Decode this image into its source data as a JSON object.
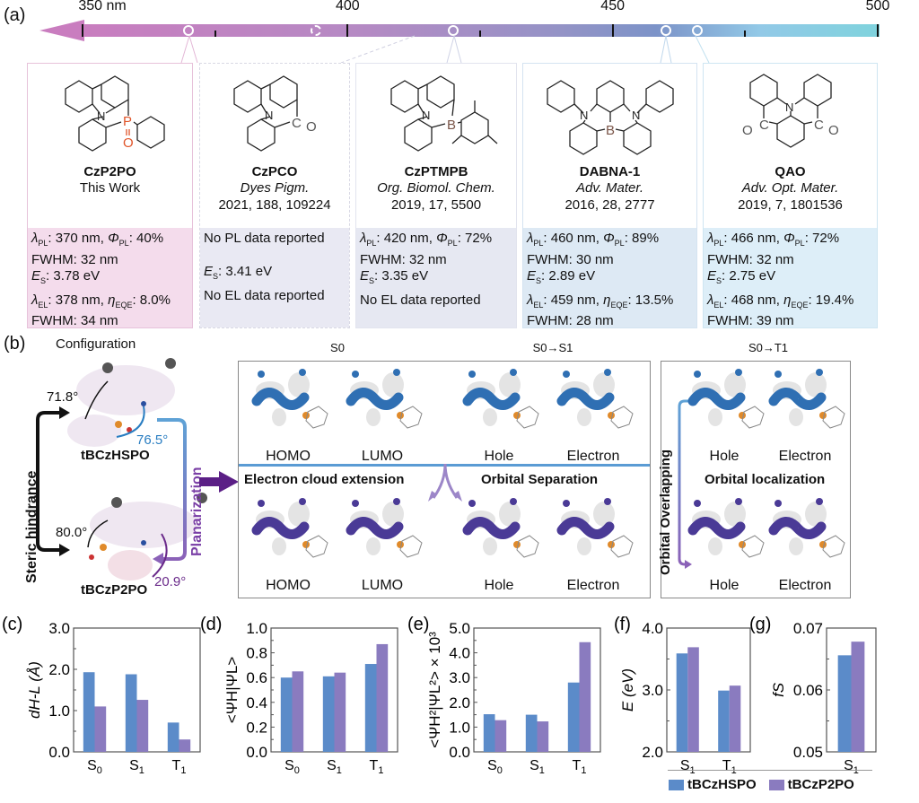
{
  "panel_a": {
    "label": "(a)",
    "scale": {
      "unit_label": "350 nm",
      "major_ticks": [
        "350 nm",
        "400",
        "450",
        "500"
      ],
      "range_nm": [
        350,
        500
      ],
      "markers_nm": [
        {
          "compound": "CzP2PO",
          "nm": 370,
          "style": "solid"
        },
        {
          "compound": "CzPCO",
          "nm": 394,
          "style": "dashed"
        },
        {
          "compound": "CzPTMPB",
          "nm": 420,
          "style": "solid"
        },
        {
          "compound": "DABNA-1",
          "nm": 460,
          "style": "solid"
        },
        {
          "compound": "QAO",
          "nm": 466,
          "style": "solid"
        }
      ]
    },
    "compounds": [
      {
        "name": "CzP2PO",
        "ref_journal": "",
        "ref_line1": "This Work",
        "ref_line2": "",
        "heteroatom": "P",
        "props": [
          "λPL: 370 nm, ΦPL: 40%",
          "FWHM: 32 nm",
          "ES: 3.78 eV",
          "λEL: 378 nm, ηEQE: 8.0%",
          "FWHM: 34 nm"
        ],
        "color": "#f4dcec"
      },
      {
        "name": "CzPCO",
        "ref_journal": "Dyes Pigm.",
        "ref_line1": "",
        "ref_line2": "2021, 188, 109224",
        "heteroatom": "C",
        "props": [
          "No PL data reported",
          "",
          "ES: 3.41 eV",
          "No EL data reported",
          ""
        ],
        "color": "#e9e9f3"
      },
      {
        "name": "CzPTMPB",
        "ref_journal": "Org. Biomol. Chem.",
        "ref_line1": "",
        "ref_line2": "2019, 17, 5500",
        "heteroatom": "B",
        "props": [
          "λPL: 420 nm, ΦPL: 72%",
          "FWHM: 32 nm",
          "ES: 3.35 eV",
          "No EL data reported",
          ""
        ],
        "color": "#e6e8f2"
      },
      {
        "name": "DABNA-1",
        "ref_journal": "Adv. Mater.",
        "ref_line1": "",
        "ref_line2": "2016, 28, 2777",
        "heteroatom": "B",
        "props": [
          "λPL: 460 nm, ΦPL: 89%",
          "FWHM: 30 nm",
          "ES: 2.89 eV",
          "λEL: 459 nm, ηEQE: 13.5%",
          "FWHM: 28 nm"
        ],
        "color": "#dde9f4"
      },
      {
        "name": "QAO",
        "ref_journal": "Adv. Opt. Mater.",
        "ref_line1": "",
        "ref_line2": "2019, 7, 1801536",
        "heteroatom": "C",
        "props": [
          "λPL: 466 nm, ΦPL: 72%",
          "FWHM: 32 nm",
          "ES: 2.75 eV",
          "λEL: 468 nm, ηEQE: 19.4%",
          "FWHM: 39 nm"
        ],
        "color": "#ddeef8"
      }
    ]
  },
  "panel_b": {
    "label": "(b)",
    "configuration_title": "Configuration",
    "molecule_top": "tBCzHSPO",
    "molecule_bottom": "tBCzP2PO",
    "angles": {
      "top_black": "71.8°",
      "top_blue": "76.5°",
      "bottom_black": "80.0°",
      "bottom_purple": "20.9°"
    },
    "steric_label": "Steric hindrance",
    "planarization_label": "Planarization",
    "s0_title": "S0",
    "s0s1_title": "S0→S1",
    "s0t1_title": "S0→T1",
    "orbital_labels": [
      "HOMO",
      "LUMO",
      "Hole",
      "Electron"
    ],
    "t1_labels": [
      "Hole",
      "Electron"
    ],
    "electron_cloud_label": "Electron cloud extension",
    "orbital_separation_label": "Orbital Separation",
    "orbital_localization_label": "Orbital localization",
    "orbital_overlapping_label": "Orbital Overlapping"
  },
  "colors": {
    "tBCzHSPO": "#5b8bc9",
    "tBCzP2PO": "#8a7bbf",
    "orbital_blue": "#2f6fb3",
    "orbital_purple": "#4a3a96"
  },
  "legend": [
    "tBCzHSPO",
    "tBCzP2PO"
  ],
  "chart_data": [
    {
      "panel": "(c)",
      "type": "bar",
      "ylabel": "dH-L (Å)",
      "categories": [
        "S0",
        "S1",
        "T1"
      ],
      "ylim": [
        0,
        3.0
      ],
      "yticks": [
        "0.0",
        "1.0",
        "2.0",
        "3.0"
      ],
      "series": [
        {
          "name": "tBCzHSPO",
          "values": [
            1.93,
            1.88,
            0.71
          ]
        },
        {
          "name": "tBCzP2PO",
          "values": [
            1.1,
            1.26,
            0.3
          ]
        }
      ]
    },
    {
      "panel": "(d)",
      "type": "bar",
      "ylabel": "<ΨH|ΨL>",
      "categories": [
        "S0",
        "S1",
        "T1"
      ],
      "ylim": [
        0,
        1.0
      ],
      "yticks": [
        "0.0",
        "0.2",
        "0.4",
        "0.6",
        "0.8",
        "1.0"
      ],
      "series": [
        {
          "name": "tBCzHSPO",
          "values": [
            0.6,
            0.61,
            0.71
          ]
        },
        {
          "name": "tBCzP2PO",
          "values": [
            0.65,
            0.64,
            0.87
          ]
        }
      ]
    },
    {
      "panel": "(e)",
      "type": "bar",
      "ylabel": "<ΨH²|ΨL²> × 10³",
      "categories": [
        "S0",
        "S1",
        "T1"
      ],
      "ylim": [
        0,
        5.0
      ],
      "yticks": [
        "0.0",
        "1.0",
        "2.0",
        "3.0",
        "4.0",
        "5.0"
      ],
      "series": [
        {
          "name": "tBCzHSPO",
          "values": [
            1.52,
            1.5,
            2.8
          ]
        },
        {
          "name": "tBCzP2PO",
          "values": [
            1.28,
            1.23,
            4.43
          ]
        }
      ]
    },
    {
      "panel": "(f)",
      "type": "bar",
      "ylabel": "E (eV)",
      "categories": [
        "S1",
        "T1"
      ],
      "ylim": [
        2.0,
        4.0
      ],
      "yticks": [
        "2.0",
        "3.0",
        "4.0"
      ],
      "series": [
        {
          "name": "tBCzHSPO",
          "values": [
            3.59,
            2.99
          ]
        },
        {
          "name": "tBCzP2PO",
          "values": [
            3.69,
            3.07
          ]
        }
      ]
    },
    {
      "panel": "(g)",
      "type": "bar",
      "ylabel": "fS",
      "categories": [
        "S1"
      ],
      "ylim": [
        0.05,
        0.07
      ],
      "yticks": [
        "0.05",
        "0.06",
        "0.07"
      ],
      "series": [
        {
          "name": "tBCzHSPO",
          "values": [
            0.0656
          ]
        },
        {
          "name": "tBCzP2PO",
          "values": [
            0.0678
          ]
        }
      ]
    }
  ]
}
